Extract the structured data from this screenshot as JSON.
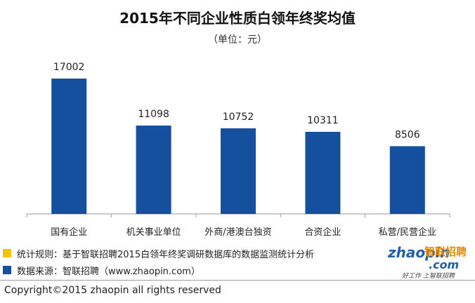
{
  "title": "2015年不同企业性质白领年终奖均值",
  "subtitle": "（单位：元）",
  "chart_data": {
    "type": "bar",
    "title": "2015年不同企业性质白领年终奖均值",
    "categories": [
      "国有企业",
      "机关事业单位",
      "外商/港澳台独资",
      "合资企业",
      "私营/民营企业"
    ],
    "values": [
      17002,
      11098,
      10752,
      10311,
      8506
    ],
    "data_labels": [
      "17002",
      "11098",
      "10752",
      "10311",
      "8506"
    ],
    "bar_color": "#14509e",
    "ylim": [
      0,
      18500
    ],
    "grid": false,
    "legend": "none"
  },
  "notes": [
    {
      "label": "统计规则：基于智联招聘2015白领年终奖调研数据库的数据监测统计分析",
      "color": "#f5c400"
    },
    {
      "label": "数据来源：智联招聘（www.zhaopin.com）",
      "color": "#14509e"
    }
  ],
  "logo": {
    "brand_latin": "zhaopin",
    "brand_cn": "智联招聘",
    "suffix": ".com",
    "slogan": "好工作 上智联招聘"
  },
  "copyright": "Copyright©2015 zhaopin all rights reserved"
}
